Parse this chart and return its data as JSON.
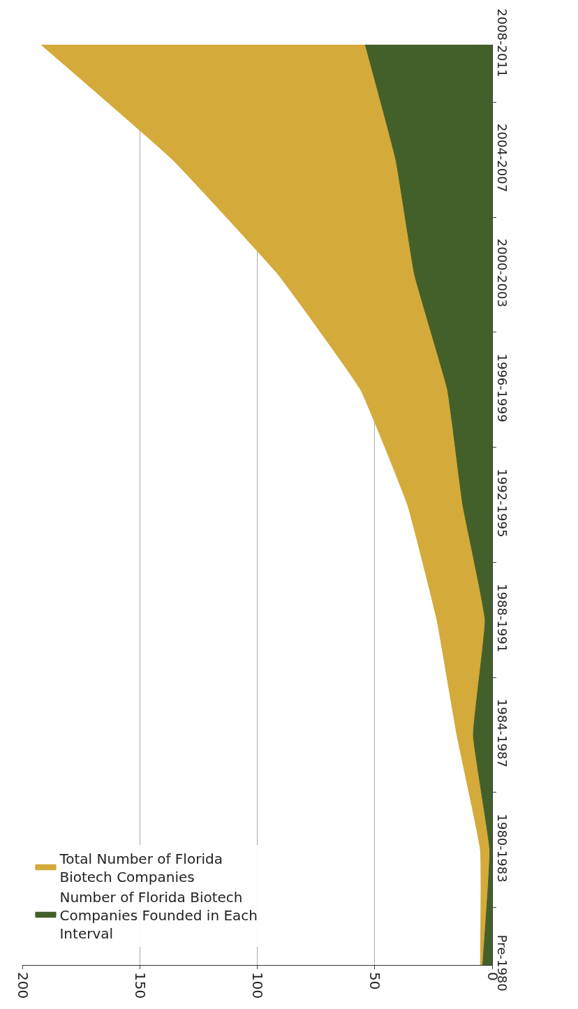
{
  "chart_data": {
    "type": "area",
    "orientation": "horizontal",
    "categories": [
      "2008-2011",
      "2004-2007",
      "2000-2003",
      "1996-1999",
      "1992-1995",
      "1988-1991",
      "1984-1987",
      "1980-1983",
      "Pre-1980"
    ],
    "series": [
      {
        "name": "Total Number of Florida Biotech Companies",
        "color": "#d4aa3a",
        "values": [
          192,
          136,
          91,
          56,
          36,
          23.5,
          15,
          5,
          5
        ]
      },
      {
        "name": "Number of Florida Biotech Companies Founded in Each Interval",
        "color": "#44602a",
        "values": [
          54,
          41,
          33,
          19,
          12.5,
          3,
          8,
          1,
          4
        ]
      }
    ],
    "xlim": [
      200,
      0
    ],
    "xticks": [
      0,
      50,
      100,
      150,
      200
    ],
    "grid": "x",
    "legend": "bottom left"
  }
}
